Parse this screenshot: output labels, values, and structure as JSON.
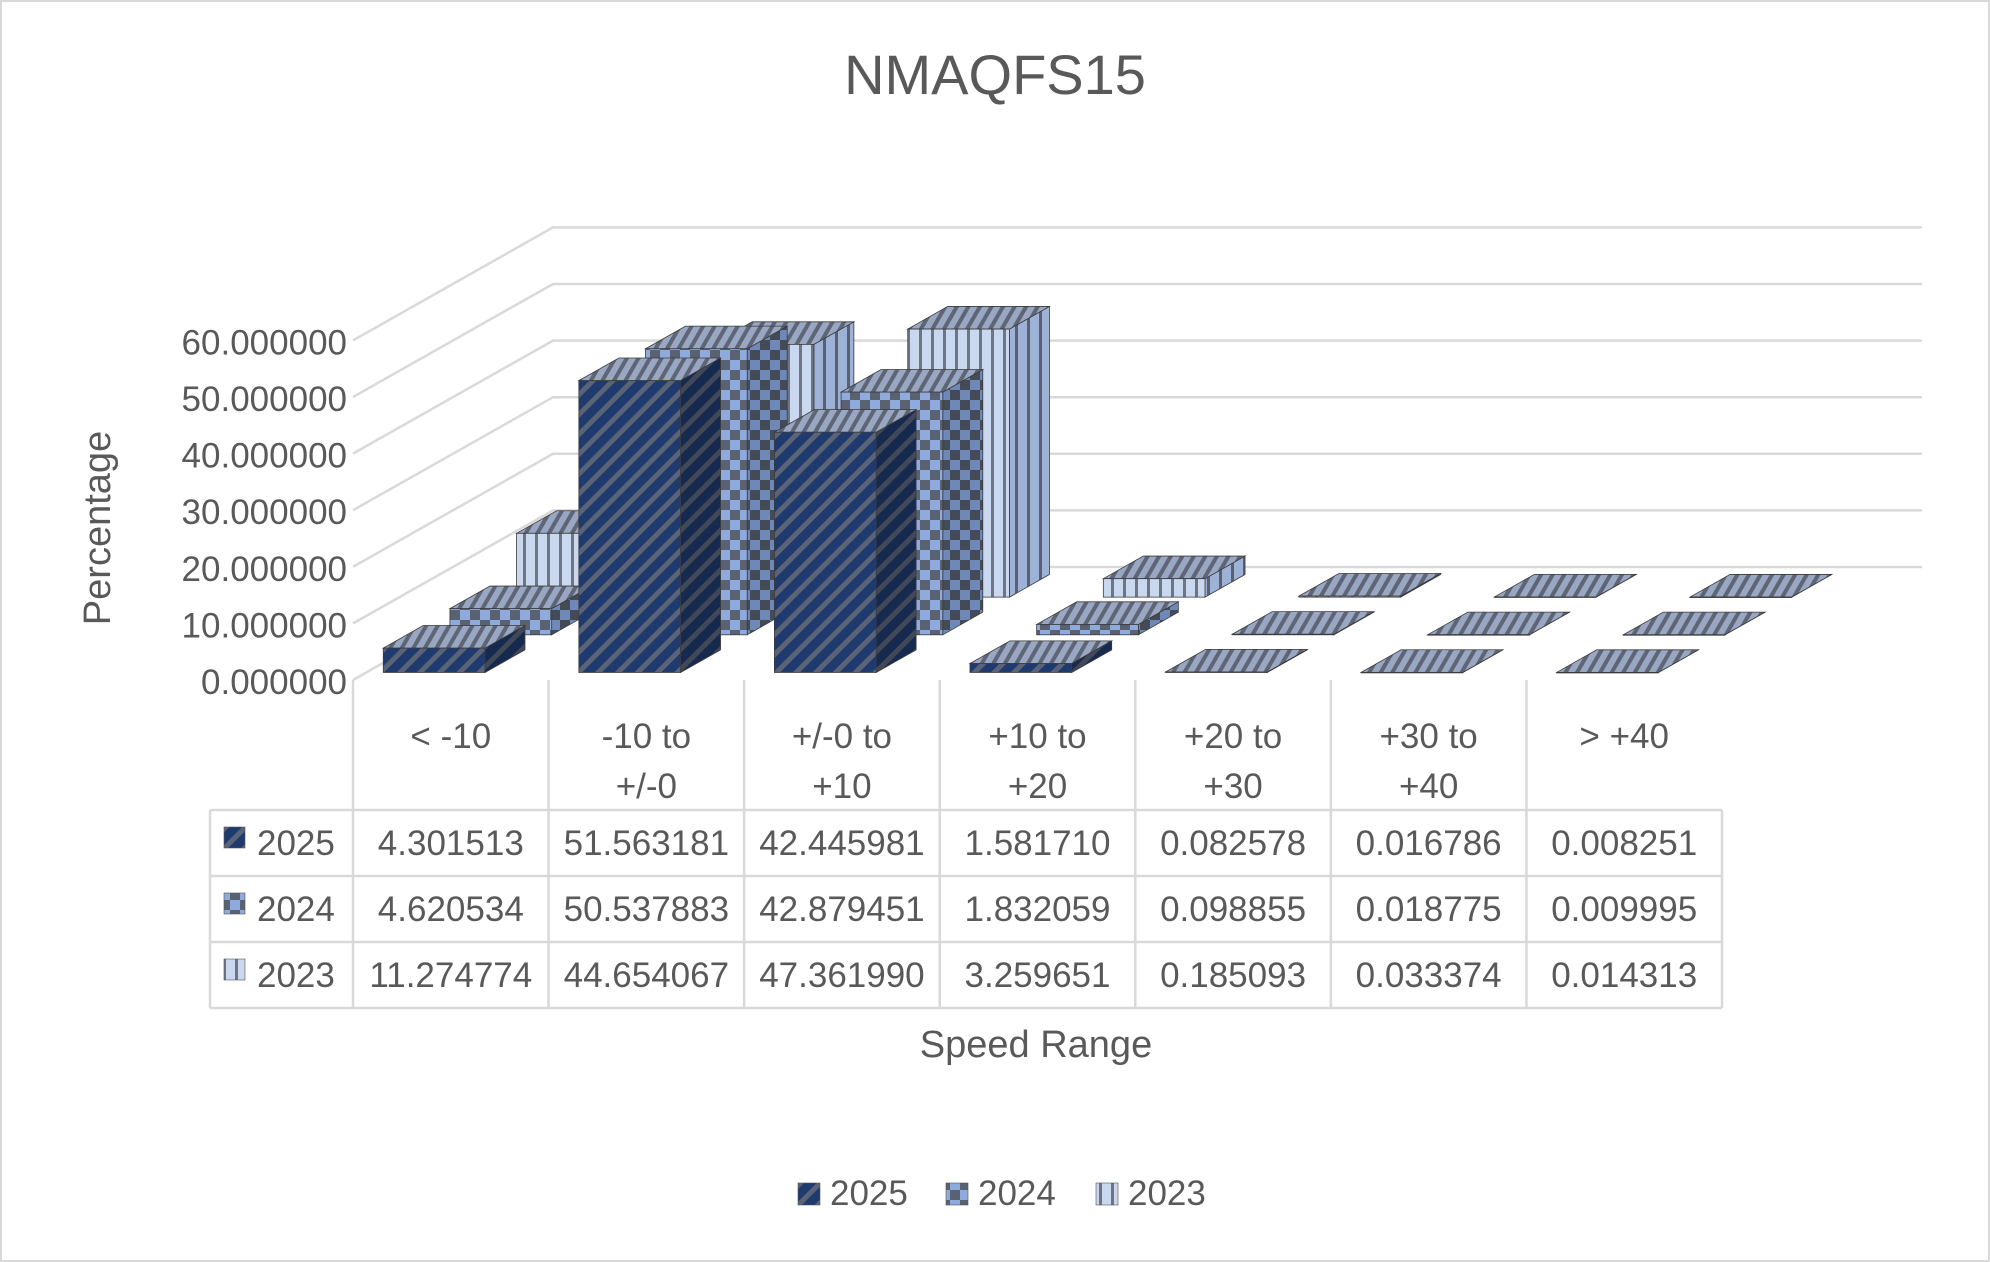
{
  "chart_data": {
    "type": "bar",
    "title": "NMAQFS15",
    "xlabel": "Speed Range",
    "ylabel": "Percentage",
    "ylim": [
      0,
      60
    ],
    "yticks": [
      "0.000000",
      "10.000000",
      "20.000000",
      "30.000000",
      "40.000000",
      "50.000000",
      "60.000000"
    ],
    "grid": true,
    "legend_position": "bottom",
    "categories": [
      [
        "< -10"
      ],
      [
        "-10 to",
        "+/-0"
      ],
      [
        "+/-0 to",
        "+10"
      ],
      [
        "+10 to",
        "+20"
      ],
      [
        "+20 to",
        "+30"
      ],
      [
        "+30 to",
        "+40"
      ],
      [
        "> +40"
      ]
    ],
    "series": [
      {
        "name": "2025",
        "values": [
          4.301513,
          51.563181,
          42.445981,
          1.58171,
          0.082578,
          0.016786,
          0.008251
        ],
        "labels": [
          "4.301513",
          "51.563181",
          "42.445981",
          "1.581710",
          "0.082578",
          "0.016786",
          "0.008251"
        ],
        "color": "#1f3a6e",
        "pattern": "diagonal"
      },
      {
        "name": "2024",
        "values": [
          4.620534,
          50.537883,
          42.879451,
          1.832059,
          0.098855,
          0.018775,
          0.009995
        ],
        "labels": [
          "4.620534",
          "50.537883",
          "42.879451",
          "1.832059",
          "0.098855",
          "0.018775",
          "0.009995"
        ],
        "color": "#8faadc",
        "pattern": "checker"
      },
      {
        "name": "2023",
        "values": [
          11.274774,
          44.654067,
          47.36199,
          3.259651,
          0.185093,
          0.033374,
          0.014313
        ],
        "labels": [
          "11.274774",
          "44.654067",
          "47.361990",
          "3.259651",
          "0.185093",
          "0.033374",
          "0.014313"
        ],
        "color": "#b4c7e7",
        "pattern": "vertical"
      }
    ]
  }
}
